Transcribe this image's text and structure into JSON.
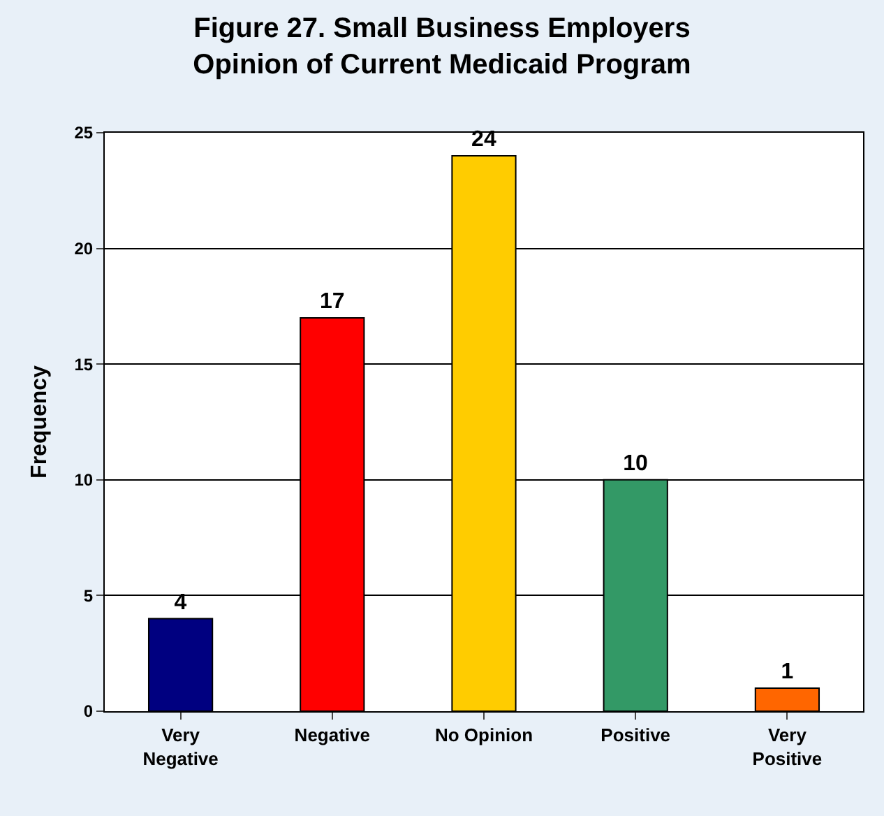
{
  "chart_data": {
    "type": "bar",
    "title": "Figure 27. Small Business Employers\nOpinion of Current Medicaid Program",
    "ylabel": "Frequency",
    "categories": [
      "Very\nNegative",
      "Negative",
      "No Opinion",
      "Positive",
      "Very\nPositive"
    ],
    "values": [
      4,
      17,
      24,
      10,
      1
    ],
    "colors": [
      "#000080",
      "#ff0000",
      "#ffcc00",
      "#339966",
      "#ff6600"
    ],
    "data_labels": true,
    "ylim": [
      0,
      25
    ],
    "yticks": [
      0,
      5,
      10,
      15,
      20,
      25
    ],
    "grid": "y"
  }
}
